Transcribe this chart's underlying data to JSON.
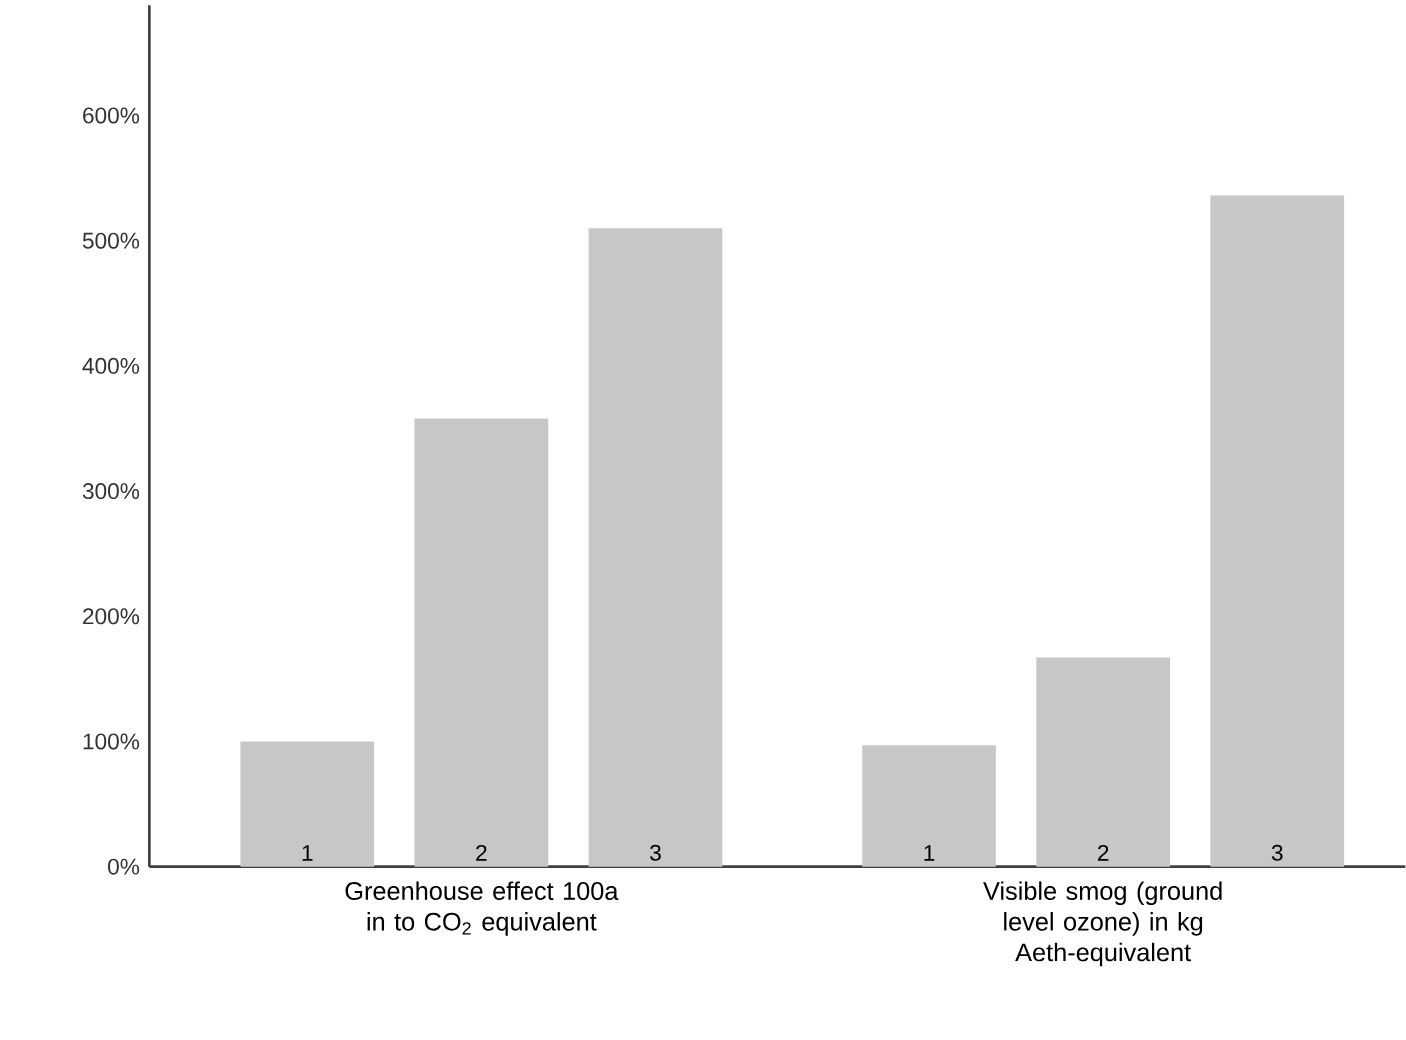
{
  "chart_data": {
    "type": "bar",
    "categories": [
      "Greenhouse effect 100a in to CO$_{2}$ equivalent",
      "Visible smog (ground level ozone) in kg Aeth-equivalent"
    ],
    "series": [
      {
        "name": "1",
        "color": "#c6c7c9",
        "values": [
          100,
          97
        ]
      },
      {
        "name": "2",
        "color": "#c6c7c9",
        "values": [
          358,
          167
        ]
      },
      {
        "name": "3",
        "color": "#c6c7c9",
        "values": [
          510,
          536
        ]
      }
    ],
    "ylim": [
      0,
      688
    ],
    "yticks": [
      {
        "value": 0,
        "label": "0%"
      },
      {
        "value": 100,
        "label": "100%"
      },
      {
        "value": 200,
        "label": "200%"
      },
      {
        "value": 300,
        "label": "300%"
      },
      {
        "value": 400,
        "label": "400%"
      },
      {
        "value": 500,
        "label": "500%"
      },
      {
        "value": 600,
        "label": "600%"
      }
    ]
  }
}
